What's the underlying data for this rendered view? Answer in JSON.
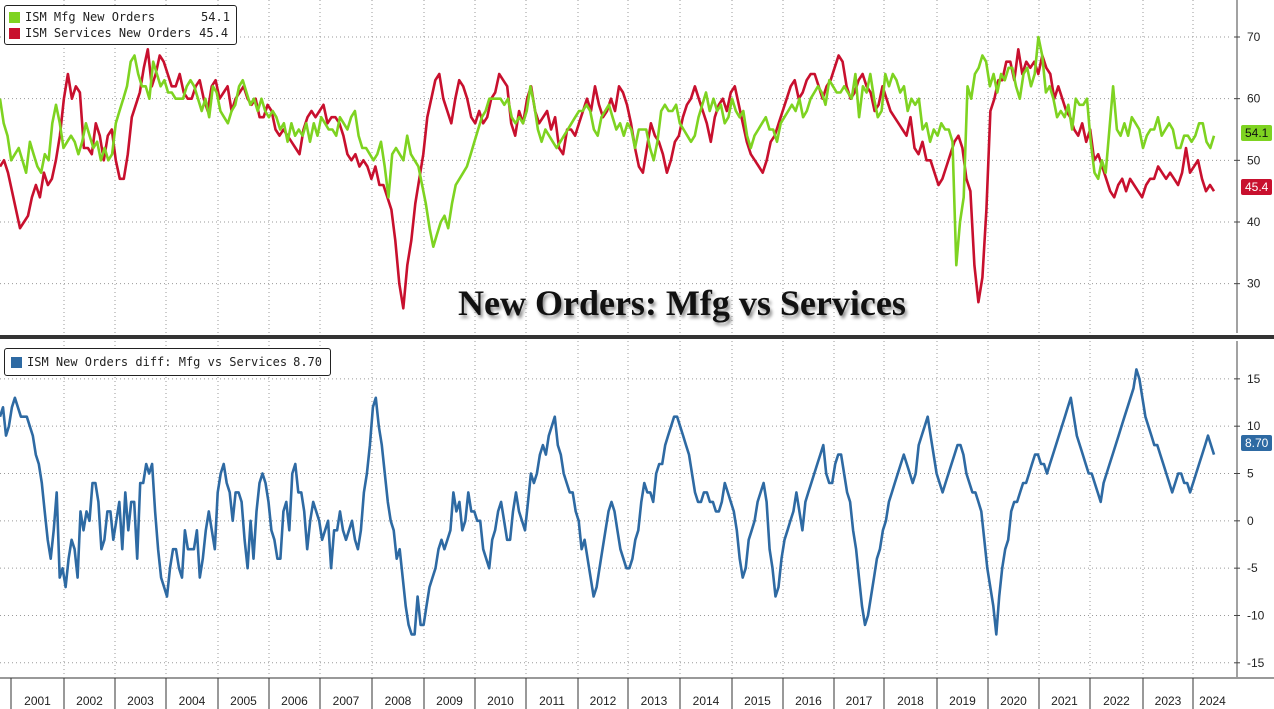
{
  "chart_data": [
    {
      "type": "line",
      "title": "New Orders: Mfg vs Services",
      "x_axis": {
        "labels": [
          "2001",
          "2002",
          "2003",
          "2004",
          "2005",
          "2006",
          "2007",
          "2008",
          "2009",
          "2010",
          "2011",
          "2012",
          "2013",
          "2014",
          "2015",
          "2016",
          "2017",
          "2018",
          "2019",
          "2020",
          "2021",
          "2022",
          "2023",
          "2024"
        ]
      },
      "y_axis": {
        "ticks": [
          30,
          40,
          50,
          60,
          70
        ],
        "ylim": [
          22,
          76
        ],
        "side": "right"
      },
      "grid": true,
      "legend": "top-left",
      "series": [
        {
          "name": "ISM Mfg New Orders",
          "last_value": "54.1",
          "color": "#7ed321",
          "values": [
            60,
            56,
            54,
            50,
            51,
            52,
            50,
            48,
            53,
            51,
            49,
            48,
            51,
            50,
            56,
            59,
            56,
            52,
            53,
            54,
            53,
            51,
            53,
            56,
            54,
            52,
            53,
            50,
            52,
            50,
            51,
            56,
            58,
            60,
            62,
            66,
            67,
            64,
            62,
            62,
            60,
            66,
            64,
            62,
            63,
            61,
            61,
            60,
            60,
            60,
            62,
            63,
            62,
            60,
            58,
            60,
            57,
            62,
            61,
            58,
            57,
            56,
            58,
            59,
            62,
            63,
            61,
            59,
            60,
            58,
            60,
            58,
            57,
            58,
            57,
            55,
            56,
            53,
            56,
            54,
            55,
            54,
            56,
            53,
            56,
            54,
            57,
            56,
            55,
            55,
            54,
            57,
            56,
            55,
            57,
            58,
            54,
            52,
            52,
            51,
            50,
            51,
            53,
            49,
            44,
            51,
            52,
            51,
            50,
            54,
            51,
            50,
            49,
            46,
            43,
            39,
            36,
            38,
            40,
            41,
            39,
            43,
            46,
            47,
            48,
            49,
            51,
            53,
            55,
            57,
            58,
            60,
            60,
            60,
            60,
            59,
            60,
            57,
            56,
            57,
            56,
            58,
            62,
            59,
            55,
            53,
            55,
            54,
            53,
            52,
            53,
            54,
            55,
            56,
            57,
            58,
            58,
            59,
            58,
            55,
            54,
            57,
            58,
            59,
            57,
            55,
            56,
            54,
            56,
            55,
            52,
            55,
            55,
            55,
            52,
            50,
            53,
            58,
            59,
            58,
            58,
            59,
            56,
            55,
            54,
            53,
            54,
            57,
            59,
            61,
            58,
            60,
            58,
            59,
            56,
            57,
            60,
            58,
            57,
            58,
            54,
            52,
            54,
            55,
            56,
            57,
            55,
            55,
            53,
            56,
            57,
            58,
            59,
            58,
            60,
            57,
            58,
            60,
            61,
            62,
            61,
            59,
            63,
            62,
            61,
            61,
            62,
            61,
            60,
            64,
            57,
            62,
            61,
            64,
            60,
            57,
            58,
            64,
            62,
            64,
            63,
            61,
            62,
            58,
            60,
            59,
            60,
            55,
            56,
            53,
            55,
            54,
            56,
            55,
            55,
            53,
            33,
            40,
            44,
            62,
            60,
            64,
            65,
            67,
            66,
            62,
            64,
            61,
            64,
            63,
            65,
            65,
            62,
            60,
            64,
            65,
            62,
            64,
            70,
            67,
            61,
            62,
            60,
            57,
            58,
            57,
            59,
            55,
            60,
            59,
            59,
            60,
            53,
            48,
            47,
            50,
            48,
            55,
            62,
            55,
            54,
            56,
            54,
            57,
            56,
            55,
            52,
            54,
            55,
            55,
            57,
            54,
            55,
            56,
            55,
            52,
            52,
            54,
            54,
            53,
            54,
            56,
            56,
            53,
            52,
            54
          ]
        },
        {
          "name": "ISM Services New Orders",
          "last_value": "45.4",
          "color": "#c8102e",
          "values": [
            49,
            50,
            48,
            45,
            42,
            39,
            40,
            41,
            44,
            46,
            44,
            48,
            46,
            47,
            50,
            54,
            60,
            64,
            60,
            62,
            61,
            52,
            52,
            51,
            56,
            54,
            50,
            54,
            55,
            50,
            47,
            47,
            51,
            57,
            59,
            61,
            65,
            68,
            62,
            64,
            67,
            66,
            64,
            62,
            62,
            64,
            61,
            60,
            60,
            62,
            63,
            60,
            58,
            62,
            63,
            60,
            61,
            62,
            58,
            60,
            61,
            62,
            60,
            59,
            60,
            57,
            57,
            59,
            58,
            55,
            54,
            55,
            54,
            53,
            52,
            51,
            55,
            57,
            58,
            57,
            58,
            59,
            56,
            57,
            57,
            56,
            54,
            51,
            50,
            51,
            49,
            50,
            49,
            47,
            49,
            46,
            46,
            44,
            42,
            37,
            30,
            26,
            33,
            37,
            43,
            47,
            51,
            57,
            60,
            63,
            64,
            60,
            58,
            56,
            60,
            63,
            62,
            60,
            57,
            56,
            58,
            56,
            57,
            60,
            61,
            64,
            63,
            62,
            56,
            54,
            58,
            56,
            60,
            62,
            58,
            56,
            57,
            58,
            55,
            57,
            52,
            51,
            55,
            55,
            54,
            56,
            58,
            60,
            58,
            62,
            59,
            57,
            58,
            60,
            58,
            62,
            61,
            59,
            56,
            52,
            49,
            48,
            52,
            56,
            54,
            53,
            51,
            48,
            50,
            53,
            54,
            57,
            59,
            60,
            62,
            60,
            58,
            56,
            53,
            57,
            59,
            60,
            58,
            61,
            62,
            59,
            56,
            53,
            51,
            50,
            49,
            48,
            50,
            53,
            54,
            56,
            58,
            60,
            62,
            63,
            60,
            61,
            63,
            64,
            64,
            62,
            60,
            62,
            63,
            65,
            67,
            66,
            62,
            60,
            61,
            63,
            64,
            62,
            61,
            58,
            59,
            62,
            60,
            58,
            57,
            56,
            55,
            54,
            57,
            52,
            51,
            53,
            50,
            50,
            48,
            46,
            47,
            49,
            51,
            53,
            54,
            52,
            47,
            45,
            33,
            27,
            31,
            42,
            58,
            60,
            63,
            63,
            66,
            66,
            63,
            68,
            64,
            66,
            65,
            66,
            64,
            67,
            65,
            64,
            60,
            62,
            60,
            58,
            57,
            55,
            54,
            56,
            53,
            55,
            50,
            51,
            49,
            47,
            45,
            44,
            46,
            47,
            45,
            47,
            46,
            45,
            44,
            46,
            47,
            47,
            49,
            48,
            47,
            48,
            47,
            46,
            48,
            52,
            48,
            49,
            50,
            47,
            45,
            46,
            45
          ]
        }
      ]
    },
    {
      "type": "line",
      "title": "",
      "x_axis": {
        "labels": [
          "2001",
          "2002",
          "2003",
          "2004",
          "2005",
          "2006",
          "2007",
          "2008",
          "2009",
          "2010",
          "2011",
          "2012",
          "2013",
          "2014",
          "2015",
          "2016",
          "2017",
          "2018",
          "2019",
          "2020",
          "2021",
          "2022",
          "2023",
          "2024"
        ]
      },
      "y_axis": {
        "ticks": [
          -15,
          -10,
          -5,
          0,
          5,
          10,
          15
        ],
        "ylim": [
          -16.5,
          19
        ],
        "side": "right"
      },
      "grid": true,
      "legend": "top-left",
      "series": [
        {
          "name": "ISM New Orders diff: Mfg vs Services",
          "last_value": "8.70",
          "color": "#2e6aa3",
          "values": [
            11,
            12,
            9,
            10,
            12,
            13,
            12,
            11,
            11,
            11,
            10,
            9,
            7,
            6,
            4,
            1,
            -2,
            -4,
            -1,
            3,
            -6,
            -5,
            -7,
            -4,
            -2,
            -3,
            -6,
            1,
            -1,
            1,
            0,
            4,
            4,
            2,
            -3,
            -2,
            1,
            1,
            -2,
            0,
            2,
            -3,
            3,
            -1,
            2,
            2,
            -4,
            4,
            4,
            6,
            5,
            6,
            1,
            -3,
            -6,
            -7,
            -8,
            -5,
            -3,
            -3,
            -5,
            -6,
            -1,
            -3,
            -3,
            -3,
            -1,
            -6,
            -4,
            -1,
            1,
            -1,
            -3,
            3,
            5,
            6,
            4,
            3,
            0,
            3,
            3,
            2,
            -2,
            -5,
            0,
            -4,
            1,
            4,
            5,
            4,
            2,
            -1,
            -2,
            -4,
            -4,
            1,
            2,
            -1,
            5,
            6,
            3,
            3,
            1,
            -3,
            0,
            2,
            1,
            0,
            -2,
            -1,
            0,
            -5,
            -1,
            -1,
            1,
            -1,
            -2,
            -1,
            0,
            -2,
            -3,
            -1,
            3,
            5,
            8,
            12,
            13,
            10,
            8,
            5,
            2,
            0,
            -1,
            -4,
            -3,
            -6,
            -9,
            -11,
            -12,
            -12,
            -8,
            -11,
            -11,
            -9,
            -7,
            -6,
            -5,
            -3,
            -2,
            -3,
            -2,
            -1,
            3,
            1,
            2,
            -1,
            0,
            3,
            1,
            1,
            0,
            0,
            -3,
            -4,
            -5,
            -2,
            -1,
            1,
            2,
            0,
            -2,
            -2,
            1,
            3,
            1,
            0,
            -1,
            2,
            5,
            4,
            5,
            7,
            8,
            7,
            9,
            10,
            11,
            8,
            7,
            5,
            4,
            3,
            3,
            1,
            0,
            -3,
            -2,
            -4,
            -6,
            -8,
            -7,
            -5,
            -3,
            -1,
            1,
            2,
            1,
            -1,
            -3,
            -4,
            -5,
            -5,
            -4,
            -2,
            -1,
            2,
            4,
            3,
            3,
            2,
            5,
            6,
            6,
            8,
            9,
            10,
            11,
            11,
            10,
            9,
            8,
            7,
            5,
            3,
            2,
            2,
            3,
            3,
            2,
            2,
            1,
            1,
            2,
            4,
            3,
            2,
            1,
            -1,
            -4,
            -6,
            -5,
            -2,
            -1,
            0,
            2,
            3,
            4,
            2,
            -3,
            -5,
            -8,
            -7,
            -4,
            -2,
            -1,
            0,
            1,
            3,
            1,
            -1,
            2,
            3,
            4,
            5,
            6,
            7,
            8,
            5,
            4,
            4,
            6,
            7,
            7,
            5,
            3,
            2,
            -1,
            -3,
            -6,
            -9,
            -11,
            -10,
            -8,
            -6,
            -4,
            -3,
            -1,
            0,
            2,
            3,
            4,
            5,
            6,
            7,
            6,
            5,
            4,
            5,
            8,
            9,
            10,
            11,
            9,
            7,
            5,
            4,
            3,
            4,
            5,
            6,
            7,
            8,
            8,
            7,
            5,
            4,
            3,
            3,
            2,
            1,
            -2,
            -5,
            -7,
            -9,
            -12,
            -8,
            -5,
            -3,
            -2,
            1,
            2,
            2,
            3,
            4,
            4,
            5,
            6,
            7,
            7,
            6,
            6,
            5,
            6,
            7,
            8,
            9,
            10,
            11,
            12,
            13,
            11,
            9,
            8,
            7,
            6,
            5,
            5,
            4,
            3,
            2,
            4,
            5,
            6,
            7,
            8,
            9,
            10,
            11,
            12,
            13,
            14,
            16,
            15,
            13,
            11,
            10,
            9,
            8,
            8,
            7,
            6,
            5,
            4,
            3,
            4,
            5,
            5,
            4,
            4,
            3,
            4,
            5,
            6,
            7,
            8,
            9,
            8,
            7
          ]
        }
      ]
    }
  ],
  "legend_top": {
    "mfg_name": "ISM Mfg New Orders",
    "mfg_value": "54.1",
    "svc_name": "ISM Services New Orders",
    "svc_value": "45.4"
  },
  "legend_bottom": {
    "diff_name": "ISM New Orders diff: Mfg vs Services",
    "diff_value": "8.70"
  },
  "title": "New Orders: Mfg vs Services",
  "colors": {
    "mfg": "#7ed321",
    "svc": "#c8102e",
    "diff": "#2e6aa3"
  }
}
